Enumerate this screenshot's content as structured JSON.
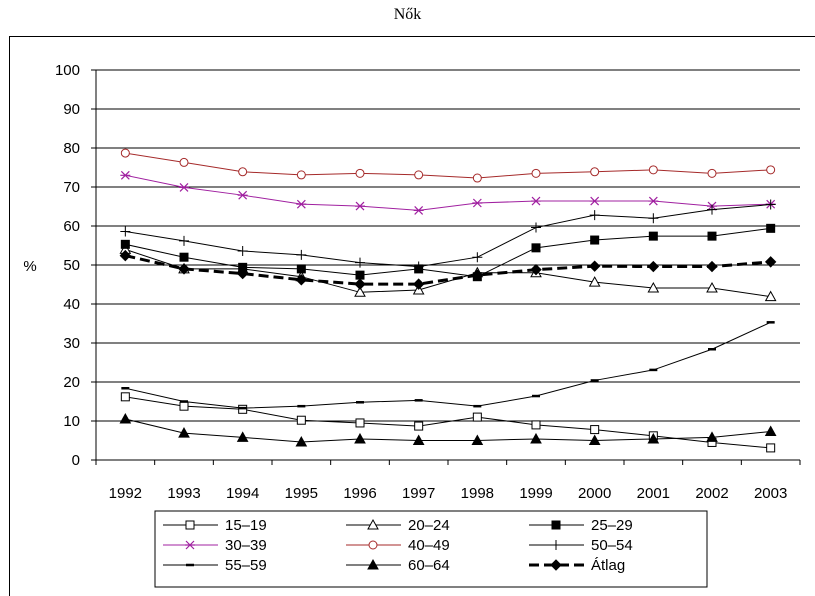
{
  "chart_data": {
    "type": "line",
    "title": "Nők",
    "xlabel": "",
    "ylabel": "%",
    "ylim": [
      0,
      100
    ],
    "yticks": [
      0,
      10,
      20,
      30,
      40,
      50,
      60,
      70,
      80,
      90,
      100
    ],
    "grid": true,
    "legend_position": "bottom",
    "x": [
      "1992",
      "1993",
      "1994",
      "1995",
      "1996",
      "1997",
      "1998",
      "1999",
      "2000",
      "2001",
      "2002",
      "2003"
    ],
    "series": [
      {
        "name": "15–19",
        "marker": "open-square",
        "color": "#000000",
        "values": [
          16.2,
          13.8,
          13.0,
          10.2,
          9.5,
          8.7,
          11.0,
          9.0,
          7.8,
          6.2,
          4.5,
          3.1
        ]
      },
      {
        "name": "20–24",
        "marker": "open-triangle",
        "color": "#000000",
        "values": [
          54.0,
          49.0,
          49.0,
          47.0,
          43.0,
          43.6,
          48.0,
          48.0,
          45.6,
          44.1,
          44.1,
          41.9
        ]
      },
      {
        "name": "25–29",
        "marker": "filled-square",
        "color": "#000000",
        "values": [
          55.3,
          52.0,
          49.4,
          49.0,
          47.4,
          49.0,
          47.0,
          54.4,
          56.4,
          57.4,
          57.4,
          59.4
        ]
      },
      {
        "name": "30–39",
        "marker": "star",
        "color": "#a020a0",
        "values": [
          73.0,
          69.9,
          67.9,
          65.6,
          65.1,
          64.0,
          65.9,
          66.4,
          66.4,
          66.4,
          65.1,
          65.6
        ]
      },
      {
        "name": "40–49",
        "marker": "open-circle",
        "color": "#a52a2a",
        "values": [
          78.7,
          76.3,
          73.9,
          73.1,
          73.5,
          73.1,
          72.3,
          73.5,
          73.9,
          74.4,
          73.5,
          74.4
        ]
      },
      {
        "name": "50–54",
        "marker": "plus",
        "color": "#000000",
        "values": [
          58.6,
          56.2,
          53.6,
          52.6,
          50.6,
          49.6,
          52.0,
          59.6,
          62.8,
          62.0,
          64.2,
          65.5
        ]
      },
      {
        "name": "55–59",
        "marker": "dash",
        "color": "#000000",
        "values": [
          18.4,
          15.0,
          13.3,
          13.8,
          14.8,
          15.3,
          13.8,
          16.4,
          20.4,
          23.1,
          28.4,
          35.3
        ]
      },
      {
        "name": "60–64",
        "marker": "filled-triangle",
        "color": "#000000",
        "values": [
          10.5,
          6.9,
          5.8,
          4.6,
          5.4,
          5.0,
          5.0,
          5.4,
          5.0,
          5.4,
          5.8,
          7.3
        ]
      },
      {
        "name": "Átlag",
        "marker": "filled-diamond",
        "color": "#000000",
        "line_style": "dashed-bold",
        "values": [
          52.4,
          49.0,
          47.8,
          46.2,
          45.1,
          45.1,
          47.4,
          48.8,
          49.7,
          49.6,
          49.6,
          50.8
        ]
      }
    ]
  }
}
